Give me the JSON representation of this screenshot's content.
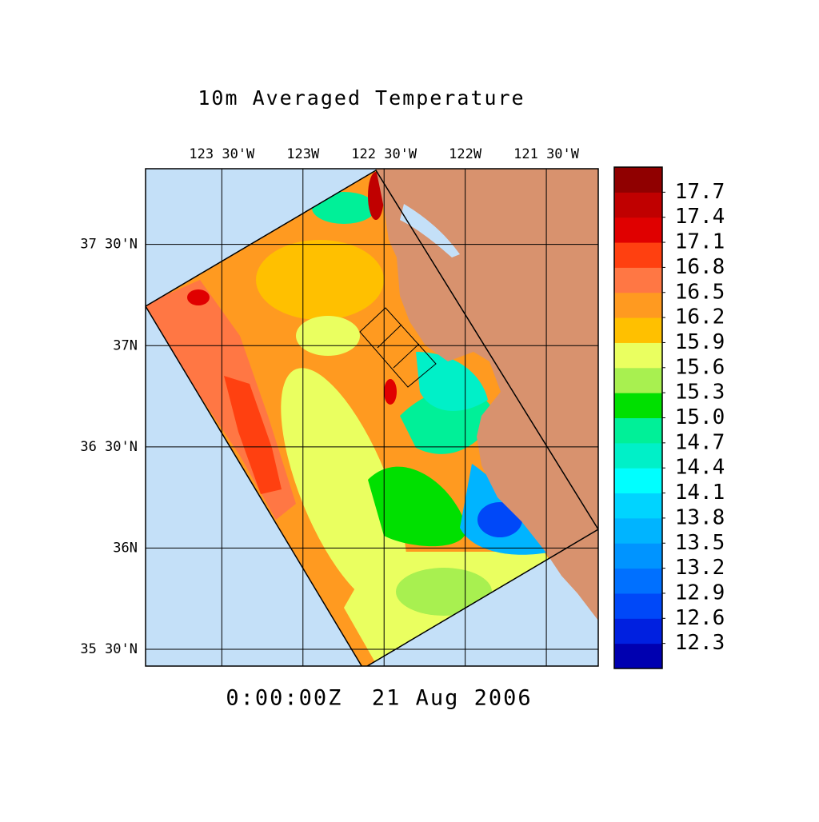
{
  "map": {
    "title": "10m Averaged Temperature",
    "time": "0:00:00Z  21 Aug 2006",
    "xlim": [
      -123.97,
      -121.18
    ],
    "ylim": [
      35.417,
      37.874
    ],
    "xticks": [
      {
        "value": -123.5,
        "label": "123 30'W"
      },
      {
        "value": -123,
        "label": "123W"
      },
      {
        "value": -122.5,
        "label": "122 30'W"
      },
      {
        "value": -122,
        "label": "122W"
      },
      {
        "value": -121.5,
        "label": "121 30'W"
      }
    ],
    "yticks": [
      {
        "value": 37.5,
        "label": "37 30'N"
      },
      {
        "value": 37,
        "label": "37N"
      },
      {
        "value": 36.5,
        "label": "36 30'N"
      },
      {
        "value": 36,
        "label": "36N"
      },
      {
        "value": 35.5,
        "label": "35 30'N"
      }
    ],
    "grid": true,
    "colorbar": {
      "lim": [
        12,
        18
      ],
      "colors": [
        "#0000b0",
        "#0020e0",
        "#0048f8",
        "#0070ff",
        "#0094ff",
        "#00b4ff",
        "#00d4ff",
        "#00ffff",
        "#00f0c8",
        "#00f098",
        "#00e000",
        "#a8f050",
        "#eaff60",
        "#ffc000",
        "#ff9a20",
        "#ff7744",
        "#ff4010",
        "#e00000",
        "#c00000",
        "#900000"
      ],
      "ticks": [
        12.3,
        12.6,
        12.9,
        13.2,
        13.5,
        13.8,
        14.1,
        14.4,
        14.7,
        {
          "value": 15,
          "label": "15.0"
        },
        15.3,
        15.6,
        15.9,
        16.2,
        16.5,
        16.8,
        17.1,
        17.4,
        17.7
      ]
    }
  }
}
